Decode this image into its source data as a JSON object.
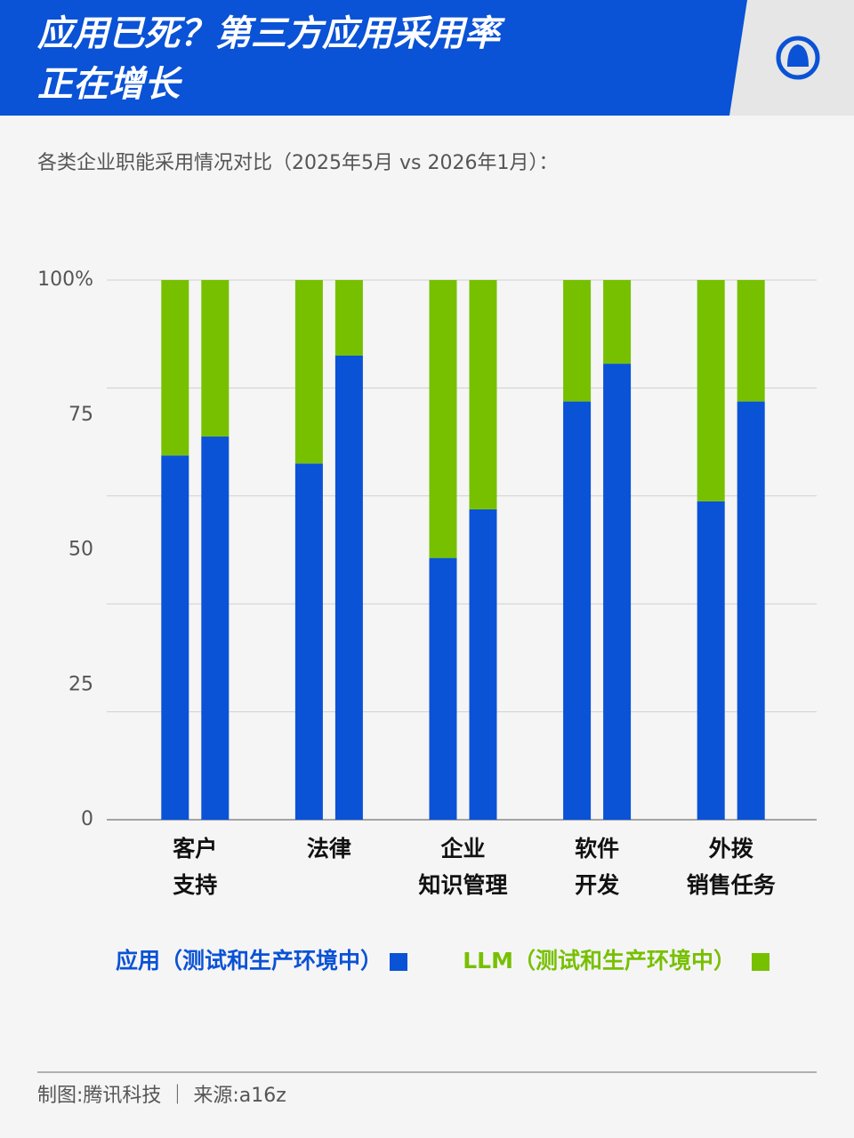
{
  "chart_data": {
    "type": "stacked-bar",
    "title": [
      "应用已死？第三方应用采用率",
      "正在增长"
    ],
    "subtitle": "各类企业职能采用情况对比（2025年5月 vs 2026年1月）：",
    "categories": [
      [
        "客户",
        "支持"
      ],
      [
        "法律"
      ],
      [
        "企业",
        "知识管理"
      ],
      [
        "软件",
        "开发"
      ],
      [
        "外拨",
        "销售任务"
      ]
    ],
    "series": [
      {
        "name": "应用（测试和生产环境中）",
        "color": "#0a52d6",
        "values": [
          [
            67.5,
            71
          ],
          [
            66,
            86
          ],
          [
            48.5,
            57.5
          ],
          [
            77.5,
            84.5
          ],
          [
            59,
            77.5
          ]
        ]
      },
      {
        "name": "LLM（测试和生产环境中）",
        "color": "#77c000",
        "values": [
          [
            32.5,
            29
          ],
          [
            34,
            14
          ],
          [
            51.5,
            42.5
          ],
          [
            22.5,
            15.5
          ],
          [
            41,
            22.5
          ]
        ]
      }
    ],
    "ylim": [
      0,
      100
    ],
    "yticks": [
      0,
      25,
      50,
      75,
      {
        "value": 100,
        "label": "100%"
      }
    ],
    "grid_values": [
      20,
      40,
      60,
      80,
      100
    ],
    "grid": true
  },
  "footer": {
    "credit": "制图:腾讯科技 ｜ 来源:a16z"
  }
}
